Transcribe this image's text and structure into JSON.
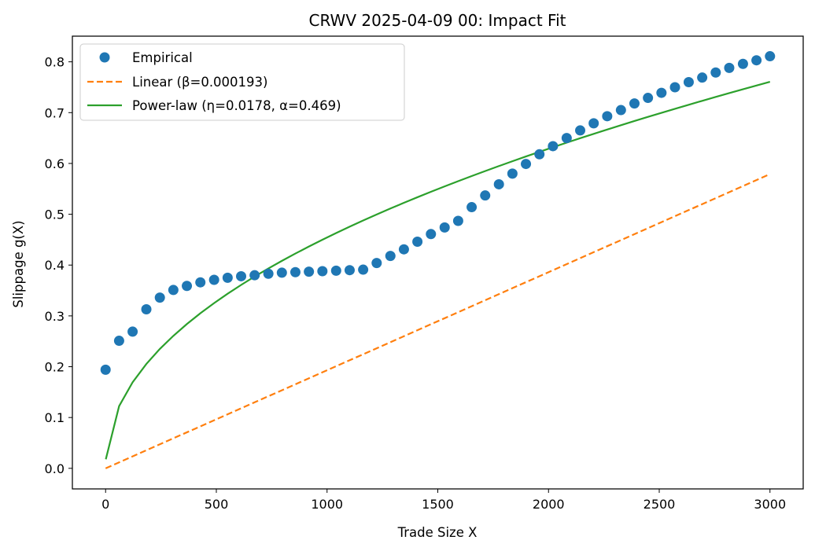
{
  "chart_data": {
    "type": "scatter",
    "title": "CRWV 2025-04-09 00: Impact Fit",
    "xlabel": "Trade Size X",
    "ylabel": "Slippage g(X)",
    "xlim": [
      -150,
      3150
    ],
    "ylim": [
      -0.0405,
      0.8505
    ],
    "xticks": [
      0,
      500,
      1000,
      1500,
      2000,
      2500,
      3000
    ],
    "yticks": [
      0.0,
      0.1,
      0.2,
      0.3,
      0.4,
      0.5,
      0.6,
      0.7,
      0.8
    ],
    "xtick_labels": [
      "0",
      "500",
      "1000",
      "1500",
      "2000",
      "2500",
      "3000"
    ],
    "ytick_labels": [
      "0.0",
      "0.1",
      "0.2",
      "0.3",
      "0.4",
      "0.5",
      "0.6",
      "0.7",
      "0.8"
    ],
    "grid": false,
    "legend_position": "top-left",
    "series": [
      {
        "name": "Empirical",
        "style": "markers",
        "color": "#1f77b4",
        "x": [
          0,
          61,
          122,
          184,
          245,
          306,
          367,
          428,
          490,
          551,
          612,
          673,
          735,
          796,
          857,
          918,
          979,
          1041,
          1102,
          1163,
          1224,
          1286,
          1347,
          1408,
          1469,
          1531,
          1592,
          1653,
          1714,
          1776,
          1837,
          1898,
          1959,
          2020,
          2082,
          2143,
          2204,
          2265,
          2327,
          2388,
          2449,
          2510,
          2571,
          2633,
          2694,
          2755,
          2816,
          2878,
          2939,
          3000
        ],
        "y": [
          0.194,
          0.251,
          0.269,
          0.313,
          0.336,
          0.351,
          0.359,
          0.366,
          0.371,
          0.375,
          0.378,
          0.38,
          0.383,
          0.385,
          0.386,
          0.387,
          0.388,
          0.389,
          0.39,
          0.391,
          0.404,
          0.418,
          0.431,
          0.446,
          0.461,
          0.474,
          0.487,
          0.514,
          0.537,
          0.559,
          0.58,
          0.599,
          0.618,
          0.634,
          0.65,
          0.665,
          0.679,
          0.693,
          0.705,
          0.718,
          0.729,
          0.739,
          0.75,
          0.76,
          0.769,
          0.779,
          0.788,
          0.796,
          0.803,
          0.811
        ]
      },
      {
        "name": "Linear (β=0.000193)",
        "style": "dashed",
        "color": "#ff7f0e",
        "beta": 0.000193,
        "x": [
          0,
          3000
        ],
        "y": [
          0.0,
          0.579
        ]
      },
      {
        "name": "Power-law (η=0.0178, α=0.469)",
        "style": "solid",
        "color": "#2ca02c",
        "eta": 0.0178,
        "alpha": 0.469,
        "x_start": 1,
        "x_end": 3000
      }
    ]
  }
}
